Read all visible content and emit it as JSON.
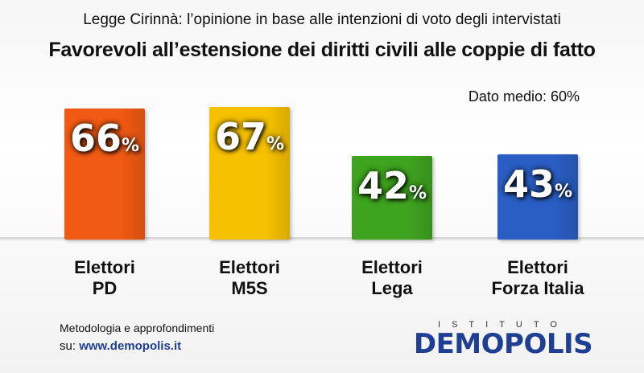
{
  "header": {
    "subtitle": "Legge Cirinnà: l’opinione in base alle intenzioni di voto degli intervistati",
    "title": "Favorevoli all’estensione dei diritti civili alle coppie di fatto",
    "average": "Dato medio: 60%"
  },
  "chart_data": {
    "type": "bar",
    "categories": [
      {
        "line1": "Elettori",
        "line2": "PD"
      },
      {
        "line1": "Elettori",
        "line2": "M5S"
      },
      {
        "line1": "Elettori",
        "line2": "Lega"
      },
      {
        "line1": "Elettori",
        "line2": "Forza Italia"
      }
    ],
    "values": [
      66,
      67,
      42,
      43
    ],
    "value_suffix": "%",
    "colors": [
      "#f15a14",
      "#f6c100",
      "#3ea31e",
      "#2a5ec4"
    ],
    "ylim": [
      0,
      100
    ],
    "grid": false
  },
  "footer": {
    "method": "Metodologia e approfondimenti",
    "site_prefix": "su:",
    "site": "www.demopolis.it",
    "logo_top": "ISTITUTO",
    "logo": "DEMOPOLIS"
  }
}
